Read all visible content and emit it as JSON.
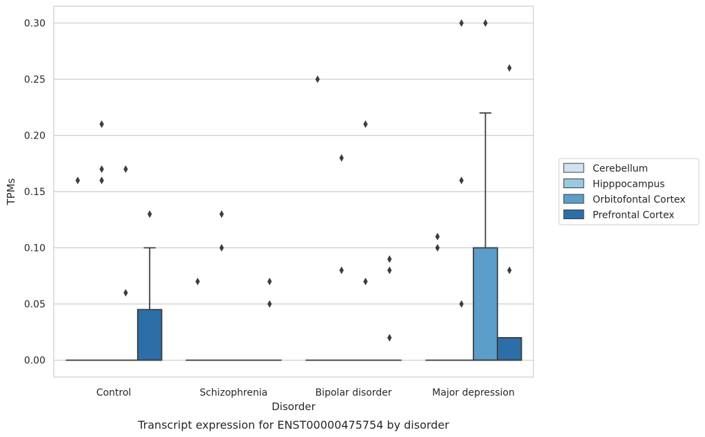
{
  "chart_data": {
    "type": "box",
    "xlabel": "Disorder",
    "ylabel": "TPMs",
    "caption": "Transcript expression for ENST00000475754 by disorder",
    "ylim": [
      -0.015,
      0.315
    ],
    "yticks": [
      "0.00",
      "0.05",
      "0.10",
      "0.15",
      "0.20",
      "0.25",
      "0.30"
    ],
    "categories": [
      "Control",
      "Schizophrenia",
      "Bipolar disorder",
      "Major depression"
    ],
    "grid": "horizontal",
    "legend_position": "right",
    "series": [
      {
        "name": "Cerebellum",
        "color": "#d1e2f2",
        "boxes": [
          {
            "whislo": 0,
            "q1": 0,
            "med": 0,
            "q3": 0,
            "whishi": 0,
            "fliers": [
              0.16
            ]
          },
          {
            "whislo": 0,
            "q1": 0,
            "med": 0,
            "q3": 0,
            "whishi": 0,
            "fliers": [
              0.07
            ]
          },
          {
            "whislo": 0,
            "q1": 0,
            "med": 0,
            "q3": 0,
            "whishi": 0,
            "fliers": [
              0.25
            ]
          },
          {
            "whislo": 0,
            "q1": 0,
            "med": 0,
            "q3": 0,
            "whishi": 0,
            "fliers": [
              0.11,
              0.1
            ]
          }
        ]
      },
      {
        "name": "Hipppocampus",
        "color": "#9ac8e0",
        "boxes": [
          {
            "whislo": 0,
            "q1": 0,
            "med": 0,
            "q3": 0,
            "whishi": 0,
            "fliers": [
              0.21,
              0.17,
              0.16
            ]
          },
          {
            "whislo": 0,
            "q1": 0,
            "med": 0,
            "q3": 0,
            "whishi": 0,
            "fliers": [
              0.13,
              0.1
            ]
          },
          {
            "whislo": 0,
            "q1": 0,
            "med": 0,
            "q3": 0,
            "whishi": 0,
            "fliers": [
              0.18,
              0.08
            ]
          },
          {
            "whislo": 0,
            "q1": 0,
            "med": 0,
            "q3": 0,
            "whishi": 0,
            "fliers": [
              0.3,
              0.16,
              0.05
            ]
          }
        ]
      },
      {
        "name": "Orbitofontal Cortex",
        "color": "#5a9ec9",
        "boxes": [
          {
            "whislo": 0,
            "q1": 0,
            "med": 0,
            "q3": 0,
            "whishi": 0,
            "fliers": [
              0.17,
              0.06
            ]
          },
          {
            "whislo": 0,
            "q1": 0,
            "med": 0,
            "q3": 0,
            "whishi": 0,
            "fliers": []
          },
          {
            "whislo": 0,
            "q1": 0,
            "med": 0,
            "q3": 0,
            "whishi": 0,
            "fliers": [
              0.21,
              0.07
            ]
          },
          {
            "whislo": 0,
            "q1": 0,
            "med": 0,
            "q3": 0.1,
            "whishi": 0.22,
            "fliers": [
              0.3
            ]
          }
        ]
      },
      {
        "name": "Prefrontal Cortex",
        "color": "#2c6ea8",
        "boxes": [
          {
            "whislo": 0,
            "q1": 0,
            "med": 0,
            "q3": 0.045,
            "whishi": 0.1,
            "fliers": [
              0.13
            ]
          },
          {
            "whislo": 0,
            "q1": 0,
            "med": 0,
            "q3": 0,
            "whishi": 0,
            "fliers": [
              0.07,
              0.05
            ]
          },
          {
            "whislo": 0,
            "q1": 0,
            "med": 0,
            "q3": 0,
            "whishi": 0,
            "fliers": [
              0.09,
              0.08,
              0.02
            ]
          },
          {
            "whislo": 0,
            "q1": 0,
            "med": 0,
            "q3": 0.02,
            "whishi": 0.02,
            "fliers": [
              0.26,
              0.08
            ]
          }
        ]
      }
    ]
  }
}
